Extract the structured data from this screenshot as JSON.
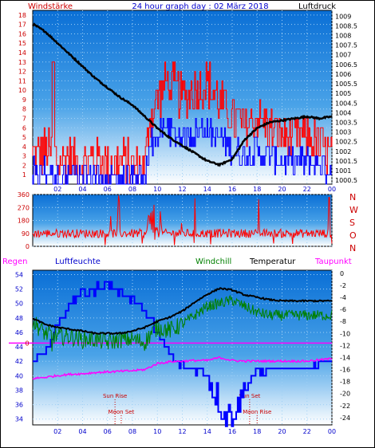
{
  "header": {
    "left": "Windstärke",
    "title": "24 hour graph day : 02 März 2018",
    "right": "Luftdruck"
  },
  "legend": {
    "regen": "Regen",
    "luftfeuchte": "Luftfeuchte",
    "windchill": "Windchill",
    "temperatur": "Temperatur",
    "taupunkt": "Taupunkt"
  },
  "wind_dir_labels": [
    "N",
    "W",
    "S",
    "O",
    "N"
  ],
  "annotations": {
    "sun_rise": "Sun Rise",
    "moon_set": "Moon Set",
    "sun_set": "Sun Set",
    "moon_rise": "Moon Rise"
  },
  "colors": {
    "panel_top": "#0a6fd6",
    "panel_bottom": "#ffffff",
    "wind_gust": "#ff0000",
    "wind_avg": "#0000ff",
    "pressure": "#000000",
    "direction": "#ff0000",
    "humidity": "#0000ff",
    "windchill": "#008000",
    "temperature": "#000000",
    "dewpoint": "#ff00ff",
    "rain_zero": "#ff00ff",
    "label_red": "#cc0000",
    "label_blue": "#0000cc",
    "label_green": "#008000",
    "label_magenta": "#ff00ff"
  },
  "chart_data": [
    {
      "type": "line",
      "name": "wind-pressure",
      "x_ticks": [
        "02",
        "04",
        "06",
        "08",
        "10",
        "12",
        "14",
        "16",
        "18",
        "20",
        "22",
        "00"
      ],
      "y_left_ticks": [
        "1",
        "2",
        "3",
        "4",
        "5",
        "6",
        "7",
        "8",
        "9",
        "10",
        "11",
        "12",
        "13",
        "14",
        "15",
        "16",
        "17",
        "18"
      ],
      "y_left_range": [
        0,
        18.5
      ],
      "y_right_ticks": [
        "1000.5",
        "1001",
        "1001.5",
        "1002",
        "1002.5",
        "1003",
        "1003.5",
        "1004",
        "1004.5",
        "1005",
        "1005.5",
        "1006",
        "1006.5",
        "1007",
        "1007.5",
        "1008",
        "1008.5",
        "1009"
      ],
      "y_right_range": [
        1000.3,
        1009.3
      ],
      "x_range_hours": [
        0,
        24
      ],
      "gust_keyframes": [
        [
          0,
          3
        ],
        [
          1,
          3.5
        ],
        [
          2,
          2.5
        ],
        [
          3,
          3
        ],
        [
          4,
          2
        ],
        [
          5,
          3
        ],
        [
          6,
          2
        ],
        [
          7,
          2.5
        ],
        [
          8,
          2
        ],
        [
          9,
          2
        ],
        [
          9.3,
          7
        ],
        [
          10,
          9
        ],
        [
          10.8,
          11
        ],
        [
          11.5,
          10
        ],
        [
          12,
          9
        ],
        [
          13,
          10
        ],
        [
          14,
          11
        ],
        [
          14.5,
          9.5
        ],
        [
          15,
          9
        ],
        [
          16,
          7
        ],
        [
          17,
          6
        ],
        [
          18,
          7
        ],
        [
          19,
          6
        ],
        [
          20,
          5
        ],
        [
          21,
          5
        ],
        [
          22,
          5
        ],
        [
          23,
          4
        ],
        [
          24,
          3
        ]
      ],
      "average_keyframes": [
        [
          0,
          1
        ],
        [
          1,
          1.5
        ],
        [
          2,
          1
        ],
        [
          3,
          1
        ],
        [
          4,
          0.8
        ],
        [
          5,
          1
        ],
        [
          6,
          0.8
        ],
        [
          7,
          0.8
        ],
        [
          8,
          0.5
        ],
        [
          9,
          0.8
        ],
        [
          9.3,
          4
        ],
        [
          10,
          5
        ],
        [
          10.8,
          6
        ],
        [
          11.5,
          5
        ],
        [
          12,
          5
        ],
        [
          13,
          5.5
        ],
        [
          14,
          6
        ],
        [
          14.5,
          5
        ],
        [
          15,
          5
        ],
        [
          16,
          3.5
        ],
        [
          17,
          3
        ],
        [
          18,
          3.5
        ],
        [
          19,
          3
        ],
        [
          20,
          2.5
        ],
        [
          21,
          2.5
        ],
        [
          22,
          2.5
        ],
        [
          23,
          2
        ],
        [
          24,
          1.5
        ]
      ],
      "pressure_keyframes": [
        [
          0,
          1008.6
        ],
        [
          1,
          1008.2
        ],
        [
          2,
          1007.6
        ],
        [
          3,
          1007.0
        ],
        [
          4,
          1006.4
        ],
        [
          5,
          1005.8
        ],
        [
          6,
          1005.3
        ],
        [
          7,
          1004.8
        ],
        [
          8,
          1004.4
        ],
        [
          9,
          1003.8
        ],
        [
          10,
          1003.2
        ],
        [
          11,
          1002.7
        ],
        [
          12,
          1002.3
        ],
        [
          13,
          1001.9
        ],
        [
          14,
          1001.5
        ],
        [
          15,
          1001.3
        ],
        [
          16,
          1001.6
        ],
        [
          17,
          1002.6
        ],
        [
          18,
          1003.2
        ],
        [
          19,
          1003.5
        ],
        [
          20,
          1003.6
        ],
        [
          21,
          1003.7
        ],
        [
          22,
          1003.8
        ],
        [
          23,
          1003.7
        ],
        [
          24,
          1003.8
        ]
      ]
    },
    {
      "type": "line",
      "name": "wind-direction",
      "y_ticks": [
        "0",
        "90",
        "180",
        "270",
        "360"
      ],
      "y_range": [
        0,
        360
      ],
      "baseline_deg": 90
    },
    {
      "type": "line",
      "name": "humidity-temperature",
      "y_left_ticks": [
        "34",
        "36",
        "38",
        "40",
        "42",
        "44",
        "46",
        "48",
        "50",
        "52",
        "54"
      ],
      "y_left_range": [
        33.2,
        54.6
      ],
      "y_right_ticks": [
        "0",
        "-2",
        "-4",
        "-6",
        "-8",
        "-10",
        "-12",
        "-14",
        "-16",
        "-18",
        "-20",
        "-22",
        "-24"
      ],
      "y_right_range": [
        -25.2,
        0.5
      ],
      "rain_value": 0,
      "humidity_keyframes": [
        [
          0,
          42
        ],
        [
          0.7,
          43
        ],
        [
          1.2,
          44
        ],
        [
          2,
          47
        ],
        [
          3,
          50
        ],
        [
          4,
          51.5
        ],
        [
          5,
          52
        ],
        [
          5.8,
          53
        ],
        [
          6.5,
          52
        ],
        [
          7.5,
          51
        ],
        [
          8.5,
          50
        ],
        [
          9,
          48.5
        ],
        [
          9.5,
          47.5
        ],
        [
          10,
          46
        ],
        [
          10.5,
          44
        ],
        [
          11,
          43
        ],
        [
          11.5,
          42
        ],
        [
          12,
          41.5
        ],
        [
          13,
          41
        ],
        [
          14,
          40.5
        ],
        [
          14.5,
          38
        ],
        [
          15,
          36
        ],
        [
          15.5,
          34.5
        ],
        [
          16,
          35
        ],
        [
          16.5,
          36
        ],
        [
          17,
          38
        ],
        [
          17.5,
          39.5
        ],
        [
          18,
          40.5
        ],
        [
          19,
          41
        ],
        [
          20,
          41
        ],
        [
          21,
          41
        ],
        [
          22,
          41
        ],
        [
          23,
          42
        ],
        [
          24,
          42
        ]
      ],
      "temperature_keyframes": [
        [
          0,
          -7.5
        ],
        [
          1,
          -8.5
        ],
        [
          2,
          -9
        ],
        [
          3,
          -9.3
        ],
        [
          4,
          -9.6
        ],
        [
          5,
          -10
        ],
        [
          6,
          -10
        ],
        [
          7,
          -10
        ],
        [
          8,
          -9.6
        ],
        [
          9,
          -9
        ],
        [
          10,
          -8
        ],
        [
          11,
          -7.3
        ],
        [
          12,
          -6.3
        ],
        [
          13,
          -4.8
        ],
        [
          14,
          -3.5
        ],
        [
          15,
          -2.5
        ],
        [
          16,
          -2.8
        ],
        [
          17,
          -3.6
        ],
        [
          18,
          -4
        ],
        [
          19,
          -4.4
        ],
        [
          20,
          -4.6
        ],
        [
          21,
          -4.6
        ],
        [
          22,
          -4.6
        ],
        [
          23,
          -4.6
        ],
        [
          24,
          -4.6
        ]
      ],
      "windchill_keyframes": [
        [
          0,
          -8
        ],
        [
          1,
          -10
        ],
        [
          2,
          -10.5
        ],
        [
          3,
          -10.5
        ],
        [
          4,
          -11
        ],
        [
          5,
          -11
        ],
        [
          6,
          -11.5
        ],
        [
          7,
          -11
        ],
        [
          8,
          -11
        ],
        [
          9,
          -11.5
        ],
        [
          9.5,
          -10
        ],
        [
          10,
          -9
        ],
        [
          11,
          -9.5
        ],
        [
          12,
          -8.5
        ],
        [
          13,
          -7
        ],
        [
          14,
          -5.5
        ],
        [
          15,
          -5
        ],
        [
          16,
          -4.5
        ],
        [
          17,
          -5.5
        ],
        [
          18,
          -6.5
        ],
        [
          19,
          -7
        ],
        [
          20,
          -7
        ],
        [
          21,
          -7
        ],
        [
          22,
          -7
        ],
        [
          23,
          -7
        ],
        [
          24,
          -7
        ]
      ],
      "dewpoint_keyframes": [
        [
          0,
          -17.5
        ],
        [
          1,
          -17.3
        ],
        [
          2,
          -17
        ],
        [
          3,
          -16.8
        ],
        [
          4,
          -16.7
        ],
        [
          5,
          -16.5
        ],
        [
          6,
          -16.4
        ],
        [
          7,
          -16.3
        ],
        [
          8,
          -16.2
        ],
        [
          9,
          -16
        ],
        [
          10,
          -15
        ],
        [
          11,
          -14.7
        ],
        [
          12,
          -14.6
        ],
        [
          13,
          -14.5
        ],
        [
          14,
          -14.5
        ],
        [
          15,
          -14
        ],
        [
          16,
          -14.5
        ],
        [
          17,
          -14.6
        ],
        [
          18,
          -14.6
        ],
        [
          19,
          -14.6
        ],
        [
          20,
          -14.6
        ],
        [
          21,
          -14.6
        ],
        [
          22,
          -14.6
        ],
        [
          23,
          -14.4
        ],
        [
          24,
          -14.2
        ]
      ],
      "annotation_hours": {
        "sun_rise": 6.6,
        "moon_set": 7.1,
        "sun_set": 17.4,
        "moon_rise": 18.0
      }
    }
  ]
}
